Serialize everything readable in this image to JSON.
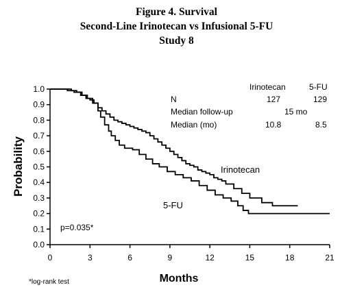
{
  "figure": {
    "title_line1": "Figure 4. Survival",
    "title_line2": "Second-Line Irinotecan vs Infusional 5-FU",
    "title_line3": "Study 8"
  },
  "stats_table": {
    "col1_header": "Irinotecan",
    "col2_header": "5-FU",
    "row_n_label": "N",
    "row_n_col1": "127",
    "row_n_col2": "129",
    "row_followup_label": "Median follow-up",
    "row_followup_value": "15 mo",
    "row_median_label": "Median (mo)",
    "row_median_col1": "10.8",
    "row_median_col2": "8.5"
  },
  "annotations": {
    "pvalue": "p=0.035*",
    "footnote": "*log-rank test"
  },
  "chart_data": {
    "type": "line",
    "step": true,
    "xlabel": "Months",
    "ylabel": "Probability",
    "xlim": [
      0,
      21
    ],
    "ylim": [
      0,
      1.0
    ],
    "xticks": [
      "0",
      "3",
      "6",
      "9",
      "12",
      "15",
      "18",
      "21"
    ],
    "yticks": [
      "0.0",
      "0.1",
      "0.2",
      "0.3",
      "0.4",
      "0.5",
      "0.6",
      "0.7",
      "0.8",
      "0.9",
      "1.0"
    ],
    "grid": false,
    "series": [
      {
        "name": "Irinotecan",
        "x": [
          0,
          1.6,
          2.0,
          2.4,
          2.7,
          3.0,
          3.3,
          3.6,
          3.9,
          4.2,
          4.5,
          4.8,
          5.1,
          5.4,
          5.7,
          6.0,
          6.3,
          6.6,
          6.9,
          7.2,
          7.5,
          7.8,
          8.1,
          8.4,
          8.7,
          9.0,
          9.3,
          9.6,
          9.9,
          10.2,
          10.5,
          10.8,
          11.1,
          11.4,
          11.7,
          12.0,
          12.3,
          12.6,
          12.9,
          13.2,
          13.8,
          14.4,
          15.0,
          15.9,
          16.7,
          18.6
        ],
        "y": [
          1.0,
          0.99,
          0.98,
          0.96,
          0.94,
          0.93,
          0.91,
          0.88,
          0.86,
          0.84,
          0.82,
          0.8,
          0.79,
          0.78,
          0.77,
          0.76,
          0.75,
          0.74,
          0.73,
          0.72,
          0.7,
          0.68,
          0.66,
          0.64,
          0.62,
          0.6,
          0.58,
          0.56,
          0.54,
          0.52,
          0.51,
          0.5,
          0.48,
          0.47,
          0.46,
          0.45,
          0.43,
          0.42,
          0.41,
          0.39,
          0.36,
          0.33,
          0.3,
          0.27,
          0.25,
          0.25
        ]
      },
      {
        "name": "5-FU",
        "x": [
          0,
          1.3,
          1.8,
          2.3,
          2.8,
          3.2,
          3.6,
          3.8,
          4.1,
          4.4,
          4.6,
          4.9,
          5.2,
          5.6,
          6.2,
          6.7,
          7.2,
          7.7,
          8.2,
          8.8,
          9.4,
          10.0,
          10.6,
          11.2,
          11.8,
          12.4,
          13.0,
          13.6,
          14.1,
          14.5,
          14.9,
          21.0
        ],
        "y": [
          1.0,
          0.99,
          0.98,
          0.96,
          0.94,
          0.91,
          0.86,
          0.82,
          0.77,
          0.73,
          0.7,
          0.67,
          0.64,
          0.62,
          0.61,
          0.58,
          0.55,
          0.52,
          0.5,
          0.47,
          0.45,
          0.43,
          0.41,
          0.38,
          0.35,
          0.32,
          0.3,
          0.28,
          0.25,
          0.22,
          0.2,
          0.2
        ]
      }
    ],
    "series_labels": [
      "Irinotecan",
      "5-FU"
    ]
  }
}
